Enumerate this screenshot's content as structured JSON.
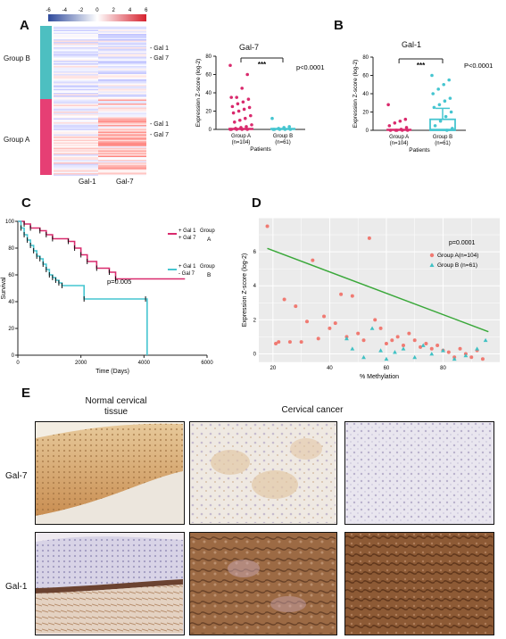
{
  "panels": {
    "A": "A",
    "B": "B",
    "C": "C",
    "D": "D",
    "E": "E"
  },
  "heatmap": {
    "scale_ticks": [
      "-6",
      "-4",
      "-2",
      "0",
      "2",
      "4",
      "6"
    ],
    "group_b_label": "Group B",
    "group_a_label": "Group A",
    "col_labels": [
      "Gal-1",
      "Gal-7"
    ],
    "legend_b": [
      "- Gal 1",
      "- Gal 7"
    ],
    "legend_a": [
      "- Gal 1",
      "- Gal 7"
    ],
    "colors": {
      "group_b": "#4dbfc1",
      "group_a": "#e63f74",
      "high": "#d6222e",
      "low": "#2f4a9c"
    }
  },
  "gal7_plot": {
    "title": "Gal-7",
    "ylabel": "Expression Z-score (log-2)",
    "xlabel": "Patients",
    "yticks": [
      "0",
      "20",
      "40",
      "60",
      "80"
    ],
    "sig": "***",
    "pval": "p<0.0001",
    "groups": [
      {
        "label": "Group A",
        "n": "(n=104)",
        "color": "#d92a6d"
      },
      {
        "label": "Group B",
        "n": "(n=61)",
        "color": "#45c5d0"
      }
    ]
  },
  "gal1_plot": {
    "title": "Gal-1",
    "ylabel": "Expression Z-score (log-2)",
    "xlabel": "Patients",
    "yticks": [
      "0",
      "20",
      "40",
      "60",
      "80"
    ],
    "sig": "***",
    "pval": "P<0.0001",
    "groups": [
      {
        "label": "Group A",
        "n": "(n=104)",
        "color": "#d92a6d"
      },
      {
        "label": "Group B",
        "n": "(n=61)",
        "color": "#45c5d0"
      }
    ]
  },
  "survival": {
    "ylabel": "Survival",
    "xlabel": "Time (Days)",
    "xticks": [
      "0",
      "2000",
      "4000",
      "6000"
    ],
    "yticks": [
      "0",
      "20",
      "40",
      "60",
      "80",
      "100"
    ],
    "pval": "p=0.005",
    "legend": [
      {
        "l1": "+ Gal 1",
        "l2": "+ Gal 7",
        "group": "Group",
        "letter": "A",
        "color": "#d92a6d"
      },
      {
        "l1": "+ Gal 1",
        "l2": "- Gal 7",
        "group": "Group",
        "letter": "B",
        "color": "#45c5d0"
      }
    ]
  },
  "scatter": {
    "ylabel": "Expression Z-score (log-2)",
    "xlabel": "% Methylation",
    "xticks": [
      "20",
      "40",
      "60",
      "80"
    ],
    "yticks": [
      "0",
      "2",
      "4",
      "6"
    ],
    "pval": "p=0.0001",
    "legend": [
      {
        "label": "Group A(n=104)",
        "color": "#f07a72"
      },
      {
        "label": "Group B (n=61)",
        "color": "#3fc1c4"
      }
    ],
    "fit_color": "#3aa83a"
  },
  "ihc": {
    "normal_title": "Normal cervical\ntissue",
    "cancer_title": "Cervical cancer",
    "rows": [
      "Gal-7",
      "Gal-1"
    ]
  },
  "chart_data": [
    {
      "type": "scatter",
      "title": "Gal-7",
      "ylabel": "Expression Z-score (log-2)",
      "xlabel": "Patients",
      "categories": [
        "Group A (n=104)",
        "Group B (n=61)"
      ],
      "ylim": [
        0,
        80
      ],
      "series": [
        {
          "name": "Group A",
          "values": [
            70,
            60,
            45,
            35,
            35,
            33,
            30,
            28,
            25,
            24,
            22,
            20,
            18,
            15,
            12,
            10,
            8,
            5,
            3,
            2,
            1,
            0,
            0,
            0,
            0,
            0
          ]
        },
        {
          "name": "Group B",
          "values": [
            12,
            3,
            2,
            1,
            0,
            0,
            0,
            0,
            0
          ]
        }
      ]
    },
    {
      "type": "scatter",
      "title": "Gal-1",
      "ylabel": "Expression Z-score (log-2)",
      "xlabel": "Patients",
      "categories": [
        "Group A (n=104)",
        "Group B (n=61)"
      ],
      "ylim": [
        0,
        80
      ],
      "series": [
        {
          "name": "Group A",
          "values": [
            28,
            12,
            10,
            8,
            5,
            3,
            1,
            0,
            0,
            0,
            0,
            0
          ]
        },
        {
          "name": "Group B",
          "values": [
            60,
            55,
            50,
            45,
            40,
            35,
            32,
            28,
            25,
            20,
            15,
            10,
            5,
            2,
            0
          ]
        }
      ]
    },
    {
      "type": "line",
      "ylabel": "Survival",
      "xlabel": "Time (Days)",
      "xlim": [
        0,
        6000
      ],
      "ylim": [
        0,
        100
      ],
      "series": [
        {
          "name": "Group A",
          "x": [
            0,
            200,
            400,
            700,
            900,
            1100,
            1600,
            1800,
            2000,
            2200,
            2500,
            2900,
            3100,
            5300
          ],
          "y": [
            100,
            98,
            95,
            93,
            90,
            87,
            85,
            80,
            75,
            70,
            65,
            62,
            57,
            57
          ]
        },
        {
          "name": "Group B",
          "x": [
            0,
            100,
            200,
            300,
            400,
            500,
            600,
            700,
            800,
            900,
            1000,
            1100,
            1200,
            1300,
            1400,
            2100,
            4050,
            4100
          ],
          "y": [
            100,
            95,
            90,
            86,
            82,
            78,
            74,
            72,
            68,
            64,
            60,
            58,
            56,
            54,
            52,
            42,
            42,
            0
          ]
        }
      ]
    },
    {
      "type": "scatter",
      "ylabel": "Expression Z-score (log-2)",
      "xlabel": "% Methylation",
      "xlim": [
        15,
        100
      ],
      "ylim": [
        -0.5,
        8
      ],
      "series": [
        {
          "name": "Group A(n=104)",
          "x": [
            18,
            21,
            22,
            24,
            26,
            28,
            30,
            32,
            34,
            36,
            38,
            40,
            42,
            44,
            46,
            48,
            50,
            52,
            54,
            56,
            58,
            60,
            62,
            64,
            66,
            68,
            70,
            72,
            74,
            76,
            78,
            80,
            82,
            84,
            86,
            88,
            90,
            92,
            94
          ],
          "y": [
            7.5,
            0.6,
            0.7,
            3.2,
            0.7,
            2.8,
            0.7,
            1.9,
            5.5,
            0.9,
            2.2,
            1.5,
            1.8,
            3.5,
            1.0,
            3.4,
            1.2,
            0.8,
            6.8,
            2.0,
            1.5,
            0.6,
            0.8,
            1.0,
            0.5,
            1.2,
            0.8,
            0.4,
            0.6,
            0.3,
            0.5,
            0.2,
            0.1,
            -0.2,
            0.3,
            0.0,
            -0.2,
            0.2,
            -0.3
          ]
        },
        {
          "name": "Group B (n=61)",
          "x": [
            46,
            48,
            52,
            55,
            58,
            60,
            63,
            66,
            70,
            73,
            76,
            80,
            84,
            88,
            92,
            95
          ],
          "y": [
            0.9,
            0.3,
            -0.2,
            1.5,
            0.2,
            -0.3,
            0.1,
            0.3,
            -0.2,
            0.5,
            0.0,
            0.2,
            -0.3,
            -0.1,
            0.3,
            0.8
          ]
        }
      ],
      "fit": {
        "x": [
          18,
          96
        ],
        "y": [
          6.2,
          1.3
        ]
      }
    }
  ]
}
